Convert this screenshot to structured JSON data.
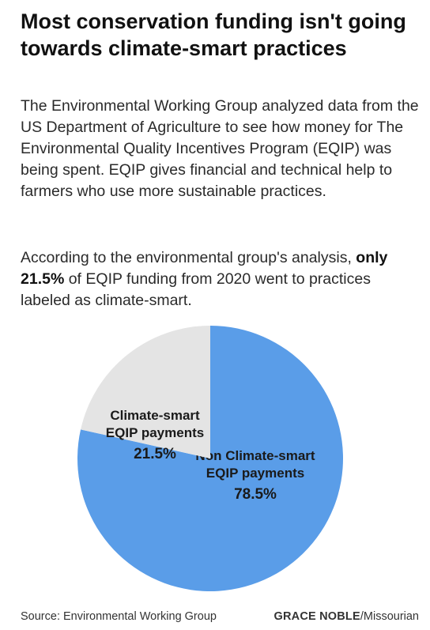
{
  "title": "Most conservation funding isn't going towards climate-smart practices",
  "intro": "The Environmental Working Group analyzed data from the US Department of Agriculture to see how money for The Environmental Quality Incentives Program (EQIP) was being spent. EQIP gives financial and technical help to farmers who use more sustainable practices.",
  "analysis": {
    "before": "According to the environmental group's analysis, ",
    "highlight": "only 21.5%",
    "after": " of EQIP funding from 2020 went to practices labeled as climate-smart."
  },
  "chart_data": {
    "type": "pie",
    "slices": [
      {
        "label_lines": [
          "Non Climate-smart",
          "EQIP payments"
        ],
        "value_label": "78.5%",
        "value": 78.5,
        "color": "#5a9de8"
      },
      {
        "label_lines": [
          "Climate-smart",
          "EQIP payments"
        ],
        "value_label": "21.5%",
        "value": 21.5,
        "color": "#e4e4e4"
      }
    ]
  },
  "footer": {
    "source": "Source: Environmental Working Group",
    "credit_name": "GRACE NOBLE",
    "credit_org": "/Missourian"
  }
}
